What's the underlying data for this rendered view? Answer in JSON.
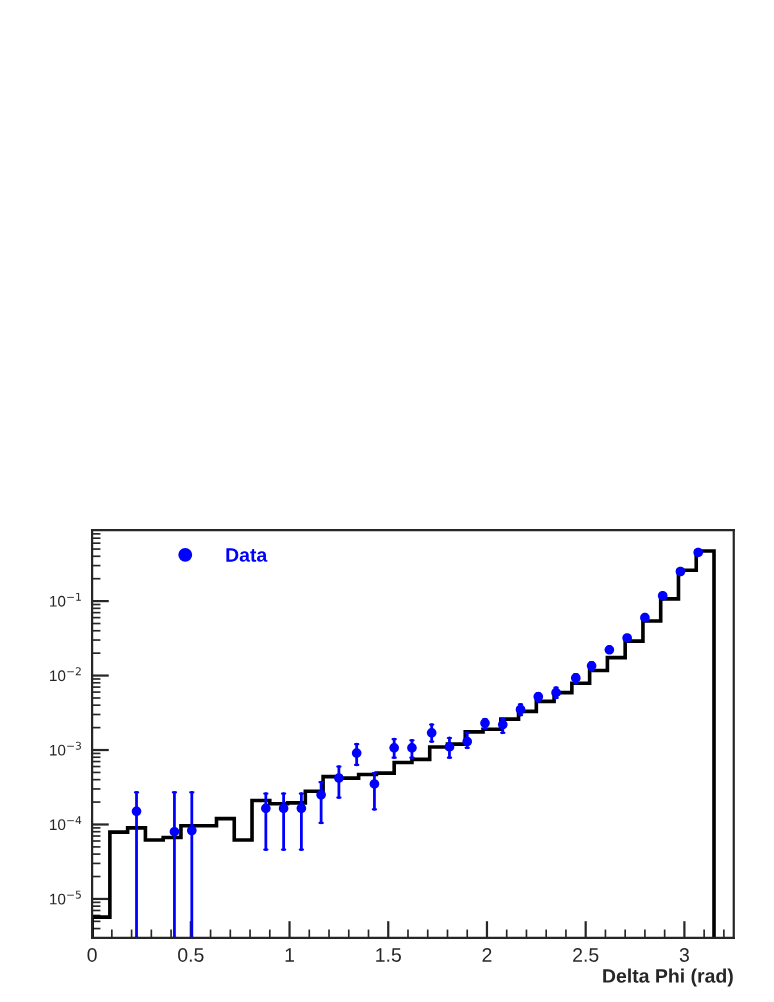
{
  "chart_data": {
    "type": "histogram",
    "xlabel": "Delta Phi (rad)",
    "xlim": [
      0,
      3.25
    ],
    "xticks": [
      0,
      0.5,
      1,
      1.5,
      2,
      2.5,
      3
    ],
    "ylim": [
      3e-06,
      0.9
    ],
    "log": "y",
    "yticks": [
      {
        "value": 1e-05,
        "label": "10$^{−5}$"
      },
      {
        "value": 0.0001,
        "label": "10$^{−4}$"
      },
      {
        "value": 0.001,
        "label": "10$^{−3}$"
      },
      {
        "value": 0.01,
        "label": "10$^{−2}$"
      },
      {
        "value": 0.1,
        "label": "10$^{−1}$"
      }
    ],
    "grid": false,
    "legend": "top left",
    "marker": "circle",
    "series": [
      {
        "color": "#000000",
        "bins": [
          0,
          0.09,
          0.18,
          0.27,
          0.36,
          0.45,
          0.54,
          0.63,
          0.72,
          0.81,
          0.9,
          0.99,
          1.08,
          1.17,
          1.26,
          1.35,
          1.44,
          1.53,
          1.62,
          1.71,
          1.8,
          1.89,
          1.98,
          2.07,
          2.16,
          2.25,
          2.34,
          2.43,
          2.52,
          2.61,
          2.7,
          2.79,
          2.88,
          2.97,
          3.06,
          3.15
        ],
        "values": [
          5.7e-06,
          7.9e-05,
          9e-05,
          6.2e-05,
          6.7e-05,
          9.6e-05,
          9.6e-05,
          0.00012,
          6.2e-05,
          0.00021,
          0.00019,
          0.000195,
          0.00028,
          0.00044,
          0.00042,
          0.00047,
          0.00049,
          0.00068,
          0.00075,
          0.0011,
          0.0012,
          0.00175,
          0.0019,
          0.0026,
          0.0033,
          0.0045,
          0.0059,
          0.0079,
          0.0117,
          0.0174,
          0.029,
          0.054,
          0.107,
          0.26,
          0.47
        ]
      },
      {
        "type": "scatter",
        "name": "Data",
        "color": "#0000ff",
        "x": [
          0.225,
          0.417,
          0.505,
          0.88,
          0.97,
          1.06,
          1.16,
          1.25,
          1.34,
          1.43,
          1.53,
          1.62,
          1.72,
          1.81,
          1.9,
          1.99,
          2.08,
          2.17,
          2.26,
          2.35,
          2.45,
          2.53,
          2.62,
          2.71,
          2.8,
          2.89,
          2.98,
          3.07
        ],
        "values": [
          0.00015,
          8e-05,
          8.3e-05,
          0.000165,
          0.000165,
          0.000165,
          0.00025,
          0.00042,
          0.00091,
          0.00035,
          0.00107,
          0.00107,
          0.0017,
          0.0011,
          0.0013,
          0.0023,
          0.0022,
          0.0035,
          0.0052,
          0.0059,
          0.0093,
          0.0135,
          0.0222,
          0.032,
          0.06,
          0.118,
          0.25,
          0.45
        ],
        "errors": [
          [
            3e-06,
            0.00027
          ],
          [
            3e-06,
            0.00027
          ],
          [
            3e-06,
            0.00027
          ],
          [
            4.6e-05,
            0.00026
          ],
          [
            4.6e-05,
            0.00026
          ],
          [
            4.6e-05,
            0.00026
          ],
          [
            0.000105,
            0.00037
          ],
          [
            0.00023,
            0.0006
          ],
          [
            0.00063,
            0.0012
          ],
          [
            0.00016,
            0.00049
          ],
          [
            0.00079,
            0.0014
          ],
          [
            0.00079,
            0.00135
          ],
          [
            0.0013,
            0.0022
          ],
          [
            0.00079,
            0.00145
          ],
          [
            0.00107,
            0.0017
          ],
          [
            0.00195,
            0.0026
          ],
          [
            0.0017,
            0.0026
          ],
          [
            0.00295,
            0.0041
          ],
          [
            0.0045,
            0.0058
          ],
          [
            0.005,
            0.0069
          ],
          [
            0.0079,
            0.0104
          ],
          [
            0.0117,
            0.015
          ],
          null,
          null,
          null,
          null,
          null,
          null
        ]
      }
    ]
  }
}
